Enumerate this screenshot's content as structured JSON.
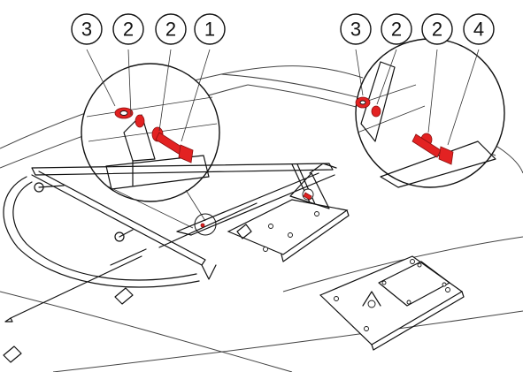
{
  "callouts": [
    {
      "label": "3",
      "target": "left-detail-bushing"
    },
    {
      "label": "2",
      "target": "left-detail-washer-a"
    },
    {
      "label": "2",
      "target": "left-detail-washer-b"
    },
    {
      "label": "1",
      "target": "left-detail-bolt"
    },
    {
      "label": "3",
      "target": "right-detail-bushing"
    },
    {
      "label": "2",
      "target": "right-detail-washer-a"
    },
    {
      "label": "2",
      "target": "right-detail-washer-b"
    },
    {
      "label": "4",
      "target": "right-detail-bolt"
    }
  ],
  "colors": {
    "highlight": "#e32222",
    "line": "#111111",
    "background": "#ffffff"
  }
}
